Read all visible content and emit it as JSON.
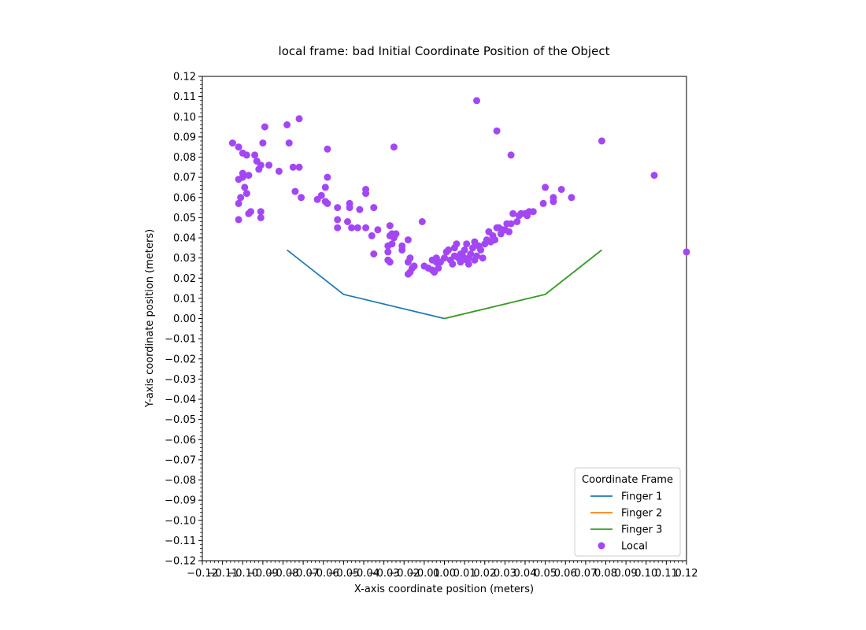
{
  "chart_data": {
    "type": "scatter",
    "title": "local frame: bad Initial Coordinate Position of the Object",
    "xlabel": "X-axis coordinate position (meters)",
    "ylabel": "Y-axis coordinate position (meters)",
    "xlim": [
      -0.12,
      0.12
    ],
    "ylim": [
      -0.12,
      0.12
    ],
    "x_ticks": [
      "−0.12",
      "−0.11",
      "−0.10",
      "−0.09",
      "−0.08",
      "−0.07",
      "−0.06",
      "−0.05",
      "−0.04",
      "−0.03",
      "−0.02",
      "−0.01",
      "0.00",
      "0.01",
      "0.02",
      "0.03",
      "0.04",
      "0.05",
      "0.06",
      "0.07",
      "0.08",
      "0.09",
      "0.10",
      "0.11",
      "0.12"
    ],
    "y_ticks": [
      "0.12",
      "0.11",
      "0.10",
      "0.09",
      "0.08",
      "0.07",
      "0.06",
      "0.05",
      "0.04",
      "0.03",
      "0.02",
      "0.01",
      "0.00",
      "−0.01",
      "−0.02",
      "−0.03",
      "−0.04",
      "−0.05",
      "−0.06",
      "−0.07",
      "−0.08",
      "−0.09",
      "−0.10",
      "−0.11",
      "−0.12"
    ],
    "grid": false,
    "legend": {
      "title": "Coordinate Frame",
      "placement": "lower-right",
      "entries": [
        "Finger 1",
        "Finger 2",
        "Finger 3",
        "Local"
      ]
    },
    "lines": [
      {
        "name": "Finger 1",
        "color": "#1f77b4",
        "x": [
          -0.078,
          -0.05,
          0.0
        ],
        "y": [
          0.034,
          0.012,
          0.0
        ]
      },
      {
        "name": "Finger 2",
        "color": "#ff7f0e",
        "x": [
          0.0,
          0.05,
          0.078
        ],
        "y": [
          0.0,
          0.012,
          0.034
        ]
      },
      {
        "name": "Finger 3",
        "color": "#2ca02c",
        "x": [
          0.0,
          0.05,
          0.078
        ],
        "y": [
          0.0,
          0.012,
          0.034
        ]
      }
    ],
    "scatter": {
      "name": "Local",
      "color": "#a347f5",
      "points": [
        [
          -0.105,
          0.087
        ],
        [
          -0.102,
          0.085
        ],
        [
          -0.1,
          0.082
        ],
        [
          -0.098,
          0.081
        ],
        [
          -0.094,
          0.081
        ],
        [
          -0.093,
          0.078
        ],
        [
          -0.091,
          0.076
        ],
        [
          -0.092,
          0.074
        ],
        [
          -0.087,
          0.076
        ],
        [
          -0.09,
          0.087
        ],
        [
          -0.089,
          0.095
        ],
        [
          -0.082,
          0.073
        ],
        [
          -0.078,
          0.096
        ],
        [
          -0.077,
          0.087
        ],
        [
          -0.072,
          0.099
        ],
        [
          -0.072,
          0.075
        ],
        [
          -0.075,
          0.075
        ],
        [
          -0.1,
          0.072
        ],
        [
          -0.102,
          0.069
        ],
        [
          -0.099,
          0.065
        ],
        [
          -0.098,
          0.062
        ],
        [
          -0.101,
          0.06
        ],
        [
          -0.102,
          0.057
        ],
        [
          -0.097,
          0.052
        ],
        [
          -0.096,
          0.053
        ],
        [
          -0.091,
          0.053
        ],
        [
          -0.091,
          0.05
        ],
        [
          -0.102,
          0.049
        ],
        [
          -0.097,
          0.071
        ],
        [
          -0.1,
          0.07
        ],
        [
          -0.074,
          0.063
        ],
        [
          -0.071,
          0.06
        ],
        [
          -0.058,
          0.084
        ],
        [
          -0.058,
          0.07
        ],
        [
          -0.059,
          0.065
        ],
        [
          -0.061,
          0.061
        ],
        [
          -0.059,
          0.058
        ],
        [
          -0.058,
          0.057
        ],
        [
          -0.063,
          0.059
        ],
        [
          -0.053,
          0.055
        ],
        [
          -0.047,
          0.057
        ],
        [
          -0.047,
          0.055
        ],
        [
          -0.042,
          0.054
        ],
        [
          -0.039,
          0.062
        ],
        [
          -0.039,
          0.064
        ],
        [
          -0.035,
          0.055
        ],
        [
          -0.053,
          0.049
        ],
        [
          -0.048,
          0.048
        ],
        [
          -0.046,
          0.045
        ],
        [
          -0.043,
          0.045
        ],
        [
          -0.053,
          0.045
        ],
        [
          -0.039,
          0.045
        ],
        [
          -0.033,
          0.044
        ],
        [
          -0.036,
          0.041
        ],
        [
          -0.035,
          0.032
        ],
        [
          -0.027,
          0.046
        ],
        [
          -0.026,
          0.042
        ],
        [
          -0.024,
          0.042
        ],
        [
          -0.027,
          0.041
        ],
        [
          -0.025,
          0.04
        ],
        [
          -0.026,
          0.037
        ],
        [
          -0.028,
          0.036
        ],
        [
          -0.028,
          0.033
        ],
        [
          -0.028,
          0.029
        ],
        [
          -0.027,
          0.028
        ],
        [
          -0.025,
          0.085
        ],
        [
          -0.021,
          0.036
        ],
        [
          -0.021,
          0.034
        ],
        [
          -0.018,
          0.039
        ],
        [
          -0.017,
          0.03
        ],
        [
          -0.018,
          0.028
        ],
        [
          -0.016,
          0.025
        ],
        [
          -0.017,
          0.023
        ],
        [
          -0.018,
          0.022
        ],
        [
          -0.015,
          0.026
        ],
        [
          -0.011,
          0.048
        ],
        [
          -0.01,
          0.026
        ],
        [
          -0.008,
          0.025
        ],
        [
          -0.006,
          0.024
        ],
        [
          -0.005,
          0.023
        ],
        [
          -0.003,
          0.025
        ],
        [
          -0.004,
          0.028
        ],
        [
          -0.006,
          0.029
        ],
        [
          -0.004,
          0.03
        ],
        [
          -0.002,
          0.028
        ],
        [
          0.0,
          0.03
        ],
        [
          0.001,
          0.033
        ],
        [
          0.002,
          0.034
        ],
        [
          0.003,
          0.029
        ],
        [
          0.004,
          0.027
        ],
        [
          0.005,
          0.035
        ],
        [
          0.006,
          0.037
        ],
        [
          0.007,
          0.03
        ],
        [
          0.008,
          0.028
        ],
        [
          0.009,
          0.031
        ],
        [
          0.01,
          0.034
        ],
        [
          0.011,
          0.037
        ],
        [
          0.012,
          0.03
        ],
        [
          0.013,
          0.032
        ],
        [
          0.014,
          0.035
        ],
        [
          0.015,
          0.038
        ],
        [
          0.016,
          0.031
        ],
        [
          0.017,
          0.036
        ],
        [
          0.018,
          0.034
        ],
        [
          0.019,
          0.03
        ],
        [
          0.02,
          0.037
        ],
        [
          0.021,
          0.039
        ],
        [
          0.022,
          0.043
        ],
        [
          0.023,
          0.038
        ],
        [
          0.024,
          0.041
        ],
        [
          0.025,
          0.039
        ],
        [
          0.026,
          0.045
        ],
        [
          0.027,
          0.045
        ],
        [
          0.028,
          0.042
        ],
        [
          0.029,
          0.044
        ],
        [
          0.03,
          0.044
        ],
        [
          0.031,
          0.047
        ],
        [
          0.032,
          0.043
        ],
        [
          0.033,
          0.047
        ],
        [
          0.034,
          0.052
        ],
        [
          0.036,
          0.048
        ],
        [
          0.037,
          0.051
        ],
        [
          0.038,
          0.052
        ],
        [
          0.04,
          0.052
        ],
        [
          0.041,
          0.051
        ],
        [
          0.042,
          0.053
        ],
        [
          0.044,
          0.053
        ],
        [
          0.049,
          0.057
        ],
        [
          0.05,
          0.065
        ],
        [
          0.054,
          0.058
        ],
        [
          0.054,
          0.06
        ],
        [
          0.058,
          0.064
        ],
        [
          0.063,
          0.06
        ],
        [
          0.016,
          0.108
        ],
        [
          0.026,
          0.093
        ],
        [
          0.033,
          0.081
        ],
        [
          0.078,
          0.088
        ],
        [
          0.104,
          0.071
        ],
        [
          0.12,
          0.033
        ],
        [
          0.012,
          0.027
        ],
        [
          0.015,
          0.029
        ],
        [
          0.008,
          0.032
        ],
        [
          0.005,
          0.031
        ],
        [
          0.011,
          0.029
        ]
      ]
    }
  }
}
